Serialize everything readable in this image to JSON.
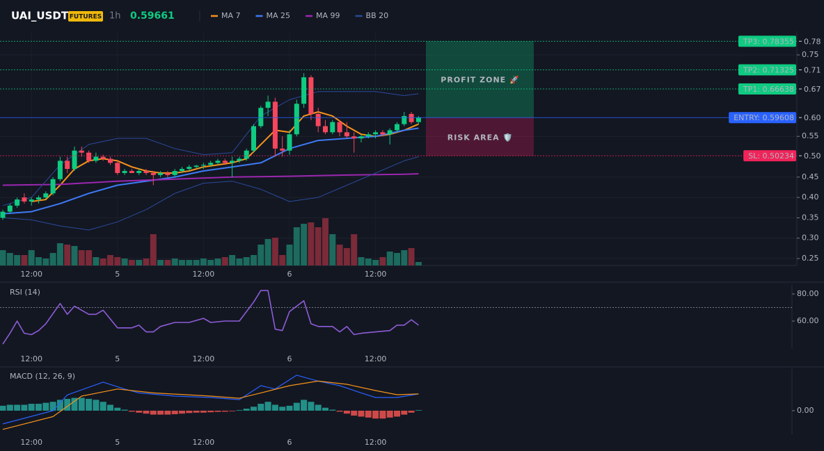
{
  "header": {
    "symbol": "UAI_USDT",
    "badge": "FUTURES",
    "interval": "1h",
    "price": "0.59661"
  },
  "chart_data": [
    {
      "type": "candlestick",
      "categories": [
        null,
        null,
        null,
        null,
        "12:00",
        null,
        null,
        null,
        null,
        null,
        null,
        null,
        null,
        null,
        null,
        null,
        "5",
        null,
        null,
        null,
        null,
        null,
        null,
        null,
        null,
        null,
        null,
        null,
        "12:00",
        null,
        null,
        null,
        null,
        null,
        null,
        null,
        null,
        null,
        null,
        null,
        "6",
        null,
        null,
        null,
        null,
        null,
        null,
        null,
        null,
        null,
        null,
        null,
        "12:00",
        null,
        null,
        null,
        null,
        null,
        null
      ],
      "open": [
        0.35,
        0.365,
        0.38,
        0.4,
        0.39,
        0.395,
        0.4,
        0.41,
        0.445,
        0.49,
        0.47,
        0.515,
        0.51,
        0.49,
        0.5,
        0.495,
        0.485,
        0.46,
        0.465,
        0.46,
        0.465,
        0.46,
        0.455,
        0.46,
        0.455,
        0.465,
        0.47,
        0.475,
        0.478,
        0.48,
        0.485,
        0.49,
        0.485,
        0.49,
        0.495,
        0.515,
        0.575,
        0.62,
        0.635,
        0.52,
        0.515,
        0.555,
        0.63,
        0.695,
        0.605,
        0.575,
        0.56,
        0.585,
        0.56,
        0.55,
        0.545,
        0.55,
        0.555,
        0.56,
        0.555,
        0.565,
        0.58,
        0.605,
        0.585
      ],
      "high": [
        0.37,
        0.385,
        0.4,
        0.41,
        0.4,
        0.405,
        0.415,
        0.45,
        0.5,
        0.5,
        0.525,
        0.525,
        0.515,
        0.51,
        0.505,
        0.5,
        0.49,
        0.47,
        0.47,
        0.47,
        0.47,
        0.465,
        0.465,
        0.465,
        0.47,
        0.475,
        0.48,
        0.48,
        0.485,
        0.49,
        0.495,
        0.495,
        0.5,
        0.5,
        0.52,
        0.58,
        0.625,
        0.65,
        0.645,
        0.55,
        0.565,
        0.64,
        0.705,
        0.7,
        0.62,
        0.59,
        0.59,
        0.59,
        0.585,
        0.56,
        0.555,
        0.56,
        0.565,
        0.565,
        0.57,
        0.585,
        0.61,
        0.61,
        0.6
      ],
      "low": [
        0.345,
        0.36,
        0.375,
        0.385,
        0.38,
        0.385,
        0.395,
        0.405,
        0.44,
        0.46,
        0.465,
        0.5,
        0.485,
        0.485,
        0.49,
        0.48,
        0.455,
        0.455,
        0.46,
        0.455,
        0.455,
        0.43,
        0.45,
        0.45,
        0.45,
        0.46,
        0.465,
        0.47,
        0.47,
        0.475,
        0.48,
        0.48,
        0.45,
        0.485,
        0.49,
        0.51,
        0.57,
        0.6,
        0.5,
        0.5,
        0.505,
        0.55,
        0.62,
        0.59,
        0.56,
        0.555,
        0.555,
        0.55,
        0.545,
        0.51,
        0.535,
        0.545,
        0.545,
        0.55,
        0.53,
        0.56,
        0.575,
        0.58,
        0.58
      ],
      "close": [
        0.365,
        0.38,
        0.395,
        0.39,
        0.395,
        0.4,
        0.41,
        0.445,
        0.49,
        0.47,
        0.515,
        0.51,
        0.49,
        0.5,
        0.495,
        0.485,
        0.46,
        0.465,
        0.46,
        0.465,
        0.46,
        0.455,
        0.46,
        0.455,
        0.465,
        0.47,
        0.475,
        0.478,
        0.48,
        0.485,
        0.49,
        0.485,
        0.49,
        0.495,
        0.515,
        0.575,
        0.62,
        0.635,
        0.52,
        0.515,
        0.555,
        0.63,
        0.695,
        0.605,
        0.575,
        0.56,
        0.585,
        0.56,
        0.55,
        0.545,
        0.55,
        0.555,
        0.56,
        0.555,
        0.565,
        0.58,
        0.6,
        0.585,
        0.59661
      ],
      "up_color": "#0ecb81",
      "down_color": "#f6465d",
      "volume": {
        "values": [
          22,
          18,
          15,
          15,
          22,
          12,
          10,
          18,
          32,
          30,
          28,
          22,
          22,
          12,
          10,
          15,
          12,
          10,
          8,
          8,
          10,
          45,
          8,
          8,
          10,
          8,
          8,
          8,
          10,
          8,
          10,
          12,
          15,
          10,
          12,
          15,
          30,
          38,
          40,
          15,
          30,
          55,
          60,
          62,
          55,
          68,
          45,
          30,
          25,
          45,
          12,
          10,
          8,
          12,
          20,
          18,
          22,
          25,
          5
        ],
        "ylim": [
          0,
          100
        ],
        "up_color": "#1c6b5e",
        "down_color": "#7a2a38"
      },
      "ylim": [
        0.233,
        0.808
      ],
      "yticks": [
        0.25,
        {
          "value": 0.3,
          "label": "0.30"
        },
        0.35,
        {
          "value": 0.4,
          "label": "0.40"
        },
        0.45,
        0.55,
        0.75
      ],
      "grid": true,
      "series": [
        {
          "name": "MA 7",
          "color": "#f7931a",
          "x": [
            4,
            6,
            8,
            10,
            12,
            14,
            16,
            18,
            20,
            22,
            24,
            26,
            28,
            30,
            32,
            34,
            36,
            38,
            40,
            42,
            44,
            46,
            48,
            50,
            52,
            54,
            56,
            58
          ],
          "values": [
            0.39,
            0.395,
            0.43,
            0.47,
            0.49,
            0.495,
            0.49,
            0.475,
            0.465,
            0.46,
            0.46,
            0.465,
            0.475,
            0.48,
            0.485,
            0.495,
            0.53,
            0.565,
            0.56,
            0.6,
            0.61,
            0.6,
            0.575,
            0.555,
            0.55,
            0.555,
            0.565,
            0.58
          ]
        },
        {
          "name": "MA 25",
          "color": "#3d7bf7",
          "x": [
            0,
            4,
            8,
            12,
            16,
            20,
            24,
            28,
            32,
            36,
            40,
            44,
            48,
            52,
            56,
            58
          ],
          "values": [
            0.36,
            0.365,
            0.385,
            0.41,
            0.43,
            0.44,
            0.45,
            0.465,
            0.475,
            0.485,
            0.52,
            0.54,
            0.545,
            0.55,
            0.565,
            0.57
          ]
        },
        {
          "name": "MA 99",
          "color": "#9c27b0",
          "x": [
            0,
            8,
            16,
            24,
            32,
            40,
            48,
            56,
            58
          ],
          "values": [
            0.43,
            0.432,
            0.44,
            0.445,
            0.45,
            0.452,
            0.455,
            0.457,
            0.458
          ]
        },
        {
          "name": "BB 20",
          "color": "#2a4a9a",
          "x": [
            0,
            4,
            8,
            12,
            16,
            20,
            24,
            28,
            32,
            36,
            40,
            44,
            48,
            52,
            56,
            58
          ],
          "upper": [
            0.38,
            0.4,
            0.48,
            0.53,
            0.545,
            0.545,
            0.52,
            0.505,
            0.51,
            0.6,
            0.64,
            0.66,
            0.66,
            0.66,
            0.65,
            0.655
          ],
          "lower": [
            0.35,
            0.345,
            0.33,
            0.32,
            0.34,
            0.37,
            0.41,
            0.435,
            0.44,
            0.42,
            0.39,
            0.4,
            0.43,
            0.46,
            0.49,
            0.5
          ]
        }
      ],
      "levels": [
        {
          "label": "TP3: 0.78355",
          "value": 0.78355,
          "axis_label": "0.78",
          "color": "#0ecb81"
        },
        {
          "label": "TP2: 0.71325",
          "value": 0.71325,
          "axis_label": "0.71",
          "color": "#0ecb81"
        },
        {
          "label": "TP1: 0.66638",
          "value": 0.66638,
          "axis_label": "0.67",
          "color": "#0ecb81"
        },
        {
          "label": "ENTRY: 0.59608",
          "value": 0.59608,
          "axis_label": "0.60",
          "color": "#2962ff"
        },
        {
          "label": "SL: 0.50234",
          "value": 0.50234,
          "axis_label": "0.50",
          "color": "#f0245a"
        }
      ],
      "zones": [
        {
          "label": "PROFIT ZONE 🚀",
          "low": 0.59608,
          "high": 0.78355,
          "color": "#0ecb81"
        },
        {
          "label": "RISK AREA 🛡️",
          "low": 0.50234,
          "high": 0.59608,
          "color": "#e91e63"
        }
      ]
    },
    {
      "type": "line",
      "title": "RSI (14)",
      "series": [
        {
          "color": "#8e5cd8",
          "x": [
            0,
            1,
            2,
            3,
            4,
            5,
            6,
            8,
            9,
            10,
            12,
            13,
            14,
            16,
            18,
            19,
            20,
            21,
            22,
            24,
            26,
            28,
            29,
            31,
            33,
            35,
            36,
            37,
            38,
            39,
            40,
            42,
            43,
            44,
            46,
            47,
            48,
            49,
            50,
            52,
            54,
            55,
            56,
            57,
            58
          ],
          "values": [
            43,
            51,
            60,
            51,
            50,
            53,
            58,
            73,
            65,
            71,
            65,
            65,
            68,
            55,
            55,
            57,
            52,
            52,
            56,
            59,
            59,
            62,
            59,
            60,
            60,
            74,
            82.5,
            82.5,
            54,
            53,
            67,
            75,
            58,
            56,
            56,
            52,
            56,
            50,
            51,
            52,
            53,
            57,
            57,
            61,
            57
          ]
        }
      ],
      "hline": 70,
      "ylim": [
        39.5,
        87.7
      ],
      "yticks": [
        {
          "value": 80,
          "label": "80.00"
        },
        {
          "value": 60,
          "label": "60.00"
        }
      ]
    },
    {
      "type": "macd",
      "title": "MACD (12, 26, 9)",
      "histogram": {
        "values": [
          0.0025,
          0.003,
          0.003,
          0.003,
          0.0035,
          0.0035,
          0.004,
          0.0045,
          0.0055,
          0.006,
          0.0065,
          0.0065,
          0.006,
          0.0055,
          0.0045,
          0.003,
          0.0015,
          0.0005,
          -0.0005,
          -0.001,
          -0.0015,
          -0.002,
          -0.002,
          -0.002,
          -0.0018,
          -0.0015,
          -0.0012,
          -0.001,
          -0.001,
          -0.0008,
          -0.0006,
          -0.0005,
          -0.0003,
          0.0003,
          0.001,
          0.002,
          0.0035,
          0.0045,
          0.003,
          0.002,
          0.0025,
          0.004,
          0.0055,
          0.0045,
          0.003,
          0.0015,
          0.0005,
          -0.0005,
          -0.0015,
          -0.0025,
          -0.003,
          -0.0035,
          -0.004,
          -0.004,
          -0.0035,
          -0.003,
          -0.002,
          -0.001,
          0.0003
        ],
        "up_color": "#26a69a",
        "down_color": "#ef5350"
      },
      "series": [
        {
          "color": "#2962ff",
          "x": [
            0,
            7,
            9,
            14,
            17,
            19,
            24,
            29,
            33,
            36,
            38,
            41,
            44,
            47,
            50,
            52,
            55,
            58
          ],
          "values": [
            -0.0067,
            0,
            0.008,
            0.0145,
            0.011,
            0.009,
            0.0074,
            0.0067,
            0.0056,
            0.0127,
            0.011,
            0.018,
            0.015,
            0.0127,
            0.009,
            0.0067,
            0.0067,
            0.0085
          ]
        },
        {
          "color": "#f7931a",
          "x": [
            0,
            7,
            11,
            16,
            21,
            29,
            33,
            36,
            40,
            44,
            48,
            52,
            55,
            58
          ],
          "values": [
            -0.0095,
            -0.003,
            0.0074,
            0.011,
            0.009,
            0.0074,
            0.0063,
            0.009,
            0.0127,
            0.015,
            0.0134,
            0.0102,
            0.0081,
            0.0085
          ]
        }
      ],
      "ylim": [
        -0.012,
        0.0215
      ],
      "yticks": [
        {
          "value": 0,
          "label": "0.00"
        }
      ]
    }
  ]
}
